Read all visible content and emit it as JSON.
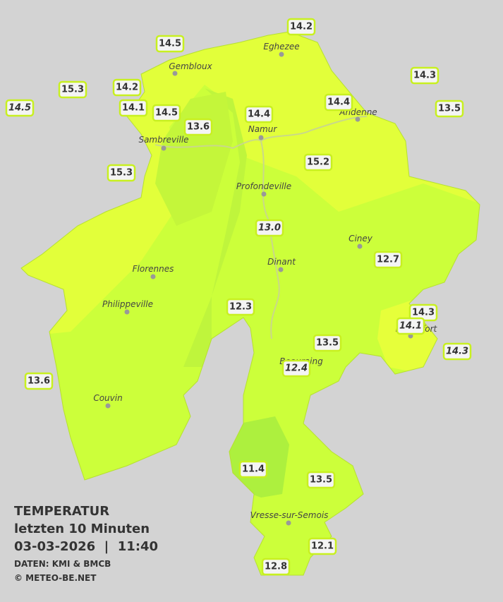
{
  "map": {
    "legend": {
      "title": "TEMPERATUR",
      "subtitle": "letzten 10 Minuten",
      "datetime": "03-03-2026  |  11:40",
      "source": "DATEN: KMI & BMCB",
      "copyright": "© METEO-BE.NET"
    },
    "cities": [
      "Eghezee",
      "Gembloux",
      "Andenne",
      "Namur",
      "Sambreville",
      "Profondeville",
      "Ciney",
      "Dinant",
      "Florennes",
      "Philippeville",
      "Rochefort",
      "Beauraing",
      "Couvin",
      "Vresse-sur-Semois"
    ],
    "stations": [
      "14.2",
      "14.5",
      "15.3",
      "14.2",
      "14.5",
      "14.1",
      "14.5",
      "13.6",
      "14.4",
      "14.4",
      "14.3",
      "13.5",
      "15.2",
      "15.3",
      "13.0",
      "12.7",
      "12.3",
      "14.3",
      "14.1",
      "14.3",
      "13.5",
      "12.4",
      "13.6",
      "11.4",
      "13.5",
      "12.1",
      "12.8"
    ]
  }
}
